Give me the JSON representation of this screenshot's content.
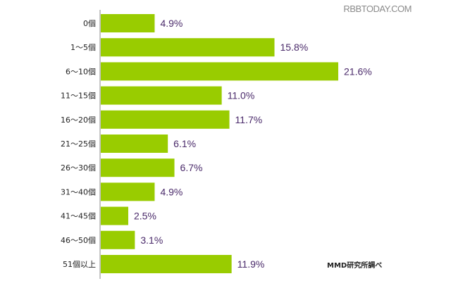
{
  "watermark": "RBBTODAY.COM",
  "source_note": "MMD研究所調べ",
  "colors": {
    "bar": "#99cc00",
    "value_text": "#4a2a6a",
    "watermark": "#8a8a8a",
    "axis": "#888888"
  },
  "chart_data": {
    "type": "bar",
    "orientation": "horizontal",
    "categories": [
      "0個",
      "1～5個",
      "6～10個",
      "11～15個",
      "16～20個",
      "21～25個",
      "26～30個",
      "31～40個",
      "41～45個",
      "46～50個",
      "51個以上"
    ],
    "values": [
      4.9,
      15.8,
      21.6,
      11.0,
      11.7,
      6.1,
      6.7,
      4.9,
      2.5,
      3.1,
      11.9
    ],
    "value_labels": [
      "4.9%",
      "15.8%",
      "21.6%",
      "11.0%",
      "11.7%",
      "6.1%",
      "6.7%",
      "4.9%",
      "2.5%",
      "3.1%",
      "11.9%"
    ],
    "unit": "%",
    "xlim": [
      0,
      24
    ],
    "grid": false,
    "legend": "none"
  }
}
